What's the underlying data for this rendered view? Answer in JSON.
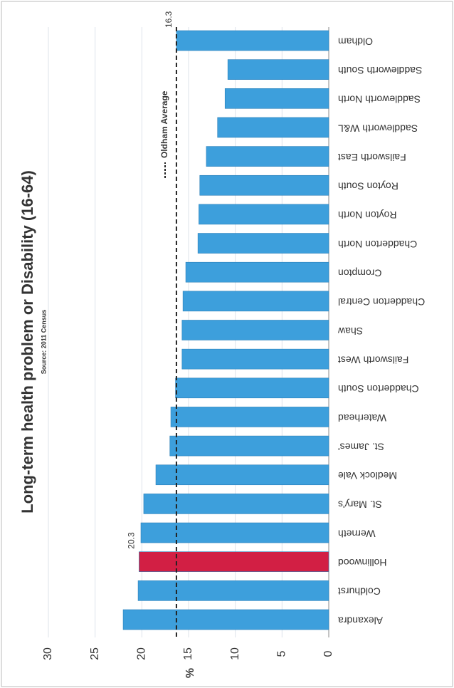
{
  "chart_data": {
    "type": "bar",
    "title": "Long-term health problem or Disability (16-64)",
    "subtitle": "Source: 2011 Census",
    "y_label": "%",
    "categories": [
      "Alexandra",
      "Coldhurst",
      "Hollinwood",
      "Werneth",
      "St. Mary's",
      "Medlock Vale",
      "St. James'",
      "Waterhead",
      "Chadderton South",
      "Failsworth West",
      "Shaw",
      "Chadderton Central",
      "Crompton",
      "Chadderton North",
      "Royton North",
      "Royton South",
      "Failsworth East",
      "Saddleworth W&L",
      "Saddleworth North",
      "Saddleworth South",
      "Oldham"
    ],
    "values": [
      22.0,
      20.4,
      20.3,
      20.1,
      19.8,
      18.5,
      17.0,
      16.9,
      16.4,
      15.7,
      15.7,
      15.6,
      15.3,
      14.0,
      13.9,
      13.8,
      13.1,
      11.9,
      11.1,
      10.8,
      16.3
    ],
    "value_labels": [
      null,
      null,
      "20.3",
      null,
      null,
      null,
      null,
      null,
      null,
      null,
      null,
      null,
      null,
      null,
      null,
      null,
      null,
      null,
      null,
      null,
      "16.3"
    ],
    "colors": [
      "#3d9fdc",
      "#3d9fdc",
      "#d21f44",
      "#3d9fdc",
      "#3d9fdc",
      "#3d9fdc",
      "#3d9fdc",
      "#3d9fdc",
      "#3d9fdc",
      "#3d9fdc",
      "#3d9fdc",
      "#3d9fdc",
      "#3d9fdc",
      "#3d9fdc",
      "#3d9fdc",
      "#3d9fdc",
      "#3d9fdc",
      "#3d9fdc",
      "#3d9fdc",
      "#3d9fdc",
      "#3d9fdc"
    ],
    "average": {
      "label": "Oldham Average",
      "value": 16.3
    },
    "ylim": [
      0,
      30
    ],
    "yticks": [
      0,
      5,
      10,
      15,
      20,
      25,
      30
    ],
    "grid": true
  }
}
